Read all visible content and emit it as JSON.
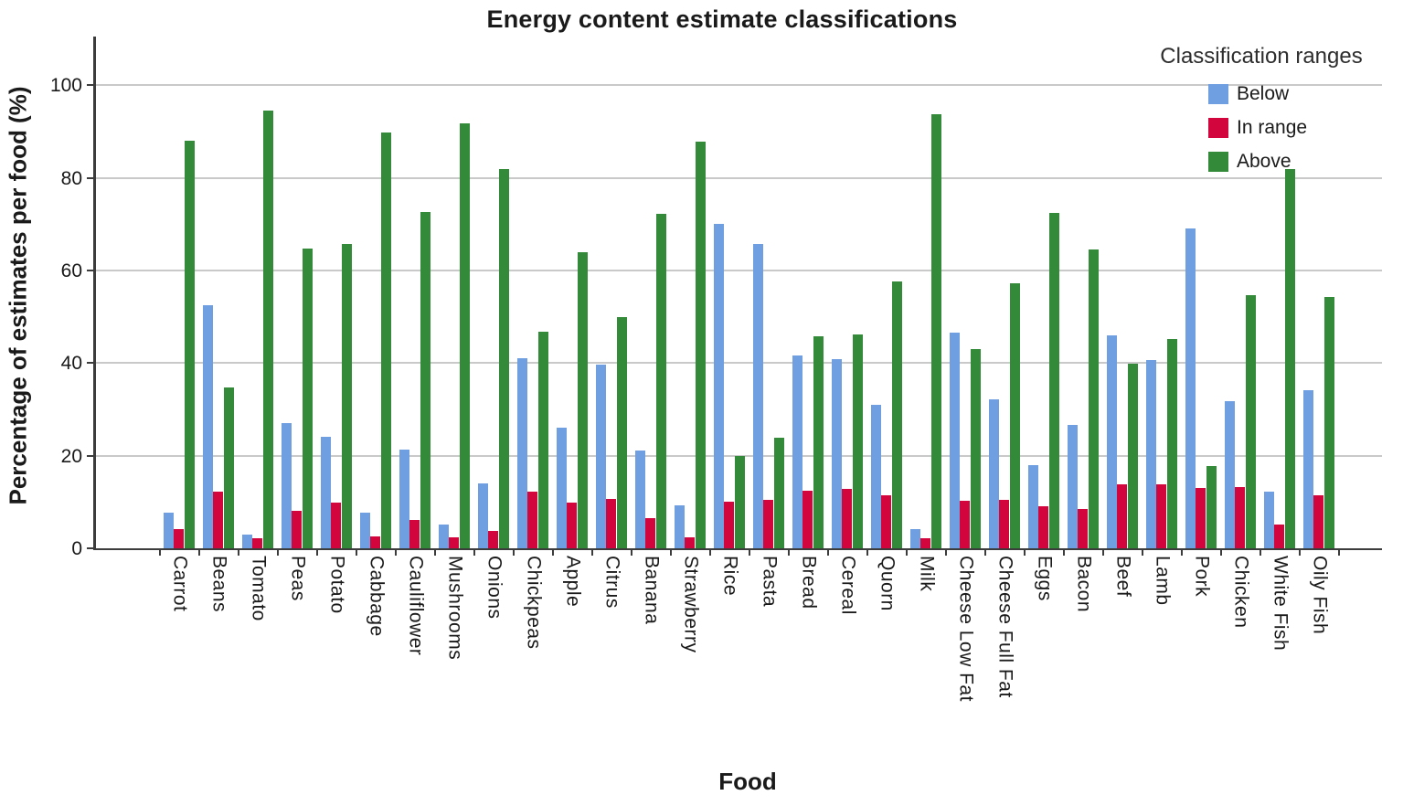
{
  "title": "Energy content estimate classifications",
  "y_axis": {
    "label": "Percentage of estimates per food (%)",
    "ticks": [
      0,
      20,
      40,
      60,
      80,
      100
    ]
  },
  "x_axis": {
    "label": "Food"
  },
  "legend": {
    "title": "Classification ranges",
    "items": [
      {
        "label": "Below",
        "color": "#6f9fe0"
      },
      {
        "label": "In range",
        "color": "#d2063c"
      },
      {
        "label": "Above",
        "color": "#338a38"
      }
    ]
  },
  "colors": {
    "below": "#6f9fe0",
    "in_range": "#d2063c",
    "above": "#338a38",
    "gridline": "#c9c9c9",
    "axis": "#3c3c3c"
  },
  "chart_data": {
    "type": "bar",
    "title": "Energy content estimate classifications",
    "xlabel": "Food",
    "ylabel": "Percentage of estimates per food (%)",
    "ylim": [
      0,
      110
    ],
    "grid": true,
    "legend_position": "top-right",
    "legend_title": "Classification ranges",
    "categories": [
      "Carrot",
      "Beans",
      "Tomato",
      "Peas",
      "Potato",
      "Cabbage",
      "Cauliflower",
      "Mushrooms",
      "Onions",
      "Chickpeas",
      "Apple",
      "Citrus",
      "Banana",
      "Strawberry",
      "Rice",
      "Pasta",
      "Bread",
      "Cereal",
      "Quorn",
      "Milk",
      "Cheese Low Fat",
      "Cheese Full Fat",
      "Eggs",
      "Bacon",
      "Beef",
      "Lamb",
      "Pork",
      "Chicken",
      "White Fish",
      "Oily Fish"
    ],
    "series": [
      {
        "name": "Below",
        "color": "#6f9fe0",
        "values": [
          7.7,
          52.5,
          3.0,
          27.0,
          24.0,
          7.7,
          21.3,
          5.2,
          14.1,
          41.0,
          26.0,
          39.7,
          21.2,
          9.3,
          70.0,
          65.8,
          41.7,
          40.8,
          31.0,
          4.1,
          46.6,
          32.2,
          17.9,
          26.6,
          46.0,
          40.7,
          69.0,
          31.7,
          12.3,
          34.2
        ]
      },
      {
        "name": "In range",
        "color": "#d2063c",
        "values": [
          4.2,
          12.3,
          2.2,
          8.1,
          9.8,
          2.5,
          6.1,
          2.4,
          3.8,
          12.3,
          9.9,
          10.6,
          6.5,
          2.4,
          10.0,
          10.4,
          12.5,
          12.9,
          11.5,
          2.1,
          10.2,
          10.5,
          9.0,
          8.5,
          13.8,
          13.8,
          13.0,
          13.2,
          5.1,
          11.5
        ]
      },
      {
        "name": "Above",
        "color": "#338a38",
        "values": [
          88.1,
          34.8,
          94.6,
          64.8,
          65.8,
          89.7,
          72.6,
          91.8,
          82.0,
          46.8,
          64.0,
          49.9,
          72.2,
          87.8,
          19.9,
          23.8,
          45.8,
          46.1,
          57.6,
          93.7,
          43.0,
          57.3,
          72.4,
          64.5,
          39.9,
          45.1,
          17.7,
          54.7,
          81.9,
          54.3
        ]
      }
    ]
  }
}
